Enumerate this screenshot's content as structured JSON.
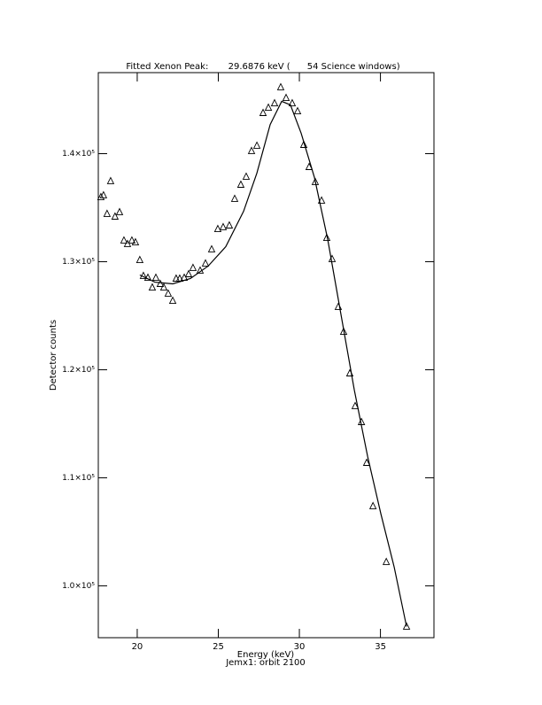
{
  "chart_data": {
    "type": "scatter",
    "title": "Fitted Xenon Peak:       29.6876 keV (      54 Science windows)",
    "x_label": "Energy (keV)",
    "subtitle": "Jemx1: orbit 2100",
    "y_label": "Detector counts",
    "xlim": [
      17.6,
      38.3
    ],
    "ylim": [
      95200,
      147500
    ],
    "xticks": [
      20,
      25,
      30,
      35
    ],
    "yticks": [
      {
        "value": 100000,
        "label": "1.0×10⁵"
      },
      {
        "value": 110000,
        "label": "1.1×10⁵"
      },
      {
        "value": 120000,
        "label": "1.2×10⁵"
      },
      {
        "value": 130000,
        "label": "1.3×10⁵"
      },
      {
        "value": 140000,
        "label": "1.4×10⁵"
      }
    ],
    "color": "#000000",
    "series": [
      {
        "marker": "triangle",
        "x": [
          17.76,
          17.92,
          18.14,
          18.36,
          18.63,
          18.91,
          19.18,
          19.4,
          19.67,
          19.89,
          20.16,
          20.38,
          20.66,
          20.93,
          21.15,
          21.42,
          21.64,
          21.91,
          22.19,
          22.4,
          22.62,
          22.9,
          23.17,
          23.44,
          23.88,
          24.21,
          24.59,
          24.97,
          25.3,
          25.68,
          26.01,
          26.39,
          26.72,
          27.05,
          27.38,
          27.76,
          28.09,
          28.47,
          28.85,
          29.18,
          29.56,
          29.89,
          30.27,
          30.6,
          30.98,
          31.37,
          31.69,
          32.02,
          32.4,
          32.73,
          33.11,
          33.44,
          33.83,
          34.15,
          34.54,
          35.36,
          36.61
        ],
        "values": [
          135980,
          136150,
          134430,
          137460,
          134180,
          134590,
          131970,
          131640,
          131970,
          131800,
          130160,
          128690,
          128520,
          127620,
          128520,
          127950,
          127620,
          127050,
          126390,
          128440,
          128440,
          128520,
          128850,
          129430,
          129180,
          129840,
          131150,
          133030,
          133200,
          133360,
          135820,
          137130,
          137870,
          140250,
          140740,
          143770,
          144260,
          144670,
          146150,
          145160,
          144670,
          143930,
          140820,
          138770,
          137380,
          135660,
          132210,
          130250,
          125820,
          123520,
          119670,
          116640,
          115160,
          111390,
          107380,
          102210,
          96230
        ]
      },
      {
        "marker": "line",
        "x": [
          20.16,
          21.09,
          22.19,
          23.28,
          24.37,
          25.46,
          26.56,
          27.38,
          28.2,
          28.91,
          29.45,
          30.11,
          30.93,
          31.75,
          32.57,
          33.39,
          34.21,
          35.03,
          35.85,
          36.61
        ],
        "values": [
          128770,
          128110,
          127950,
          128440,
          129590,
          131390,
          134670,
          138200,
          142700,
          144840,
          144510,
          141890,
          137790,
          132050,
          125080,
          118110,
          111970,
          106640,
          101720,
          96230
        ]
      }
    ]
  }
}
